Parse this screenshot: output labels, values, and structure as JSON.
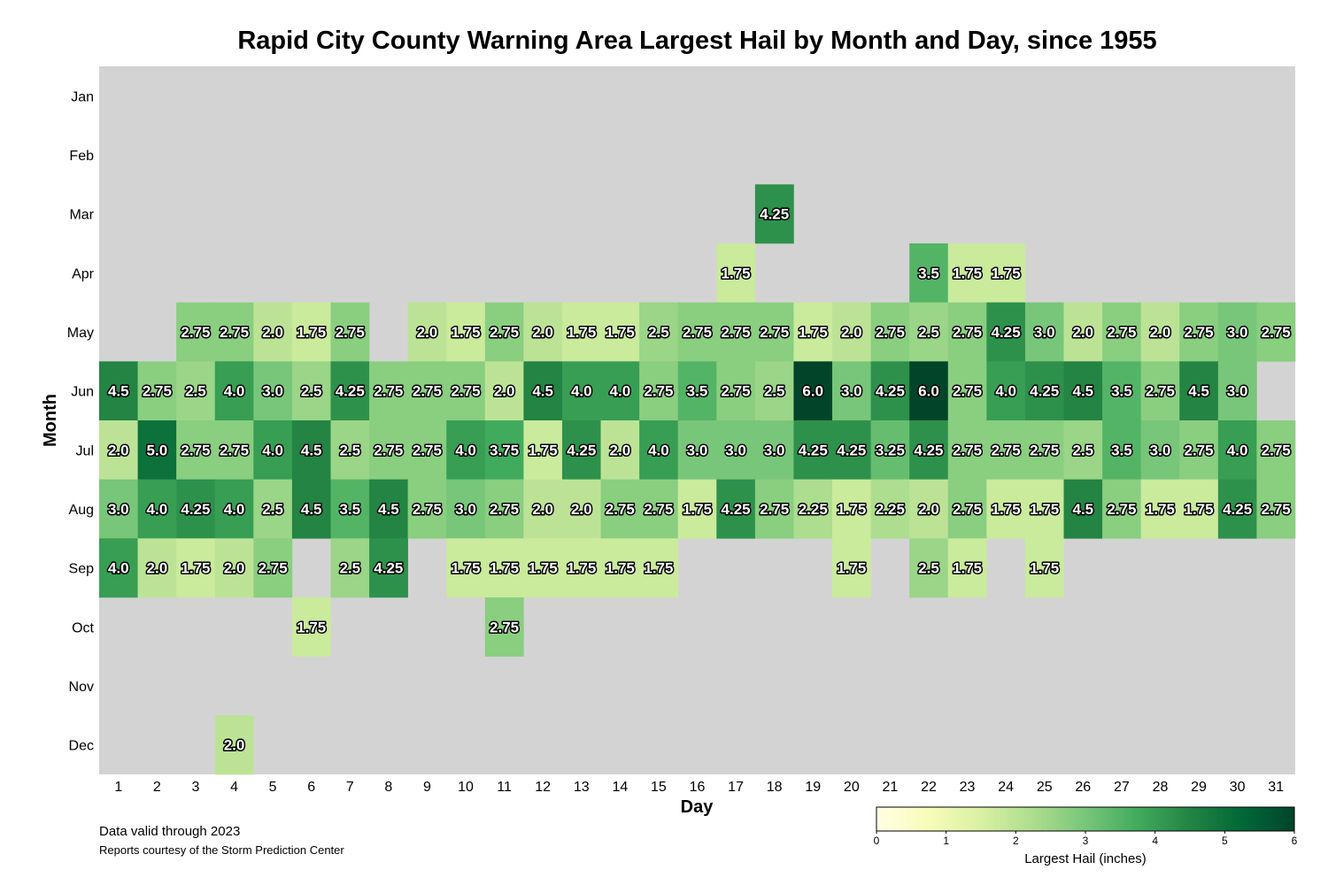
{
  "chart_data": {
    "type": "heatmap",
    "title": "Rapid City County Warning Area Largest Hail by Month and Day, since 1955",
    "xlabel": "Day",
    "ylabel": "Month",
    "x": [
      "1",
      "2",
      "3",
      "4",
      "5",
      "6",
      "7",
      "8",
      "9",
      "10",
      "11",
      "12",
      "13",
      "14",
      "15",
      "16",
      "17",
      "18",
      "19",
      "20",
      "21",
      "22",
      "23",
      "24",
      "25",
      "26",
      "27",
      "28",
      "29",
      "30",
      "31"
    ],
    "y": [
      "Jan",
      "Feb",
      "Mar",
      "Apr",
      "May",
      "Jun",
      "Jul",
      "Aug",
      "Sep",
      "Oct",
      "Nov",
      "Dec"
    ],
    "values": [
      [
        null,
        null,
        null,
        null,
        null,
        null,
        null,
        null,
        null,
        null,
        null,
        null,
        null,
        null,
        null,
        null,
        null,
        null,
        null,
        null,
        null,
        null,
        null,
        null,
        null,
        null,
        null,
        null,
        null,
        null,
        null
      ],
      [
        null,
        null,
        null,
        null,
        null,
        null,
        null,
        null,
        null,
        null,
        null,
        null,
        null,
        null,
        null,
        null,
        null,
        null,
        null,
        null,
        null,
        null,
        null,
        null,
        null,
        null,
        null,
        null,
        null,
        null,
        null
      ],
      [
        null,
        null,
        null,
        null,
        null,
        null,
        null,
        null,
        null,
        null,
        null,
        null,
        null,
        null,
        null,
        null,
        null,
        4.25,
        null,
        null,
        null,
        null,
        null,
        null,
        null,
        null,
        null,
        null,
        null,
        null,
        null
      ],
      [
        null,
        null,
        null,
        null,
        null,
        null,
        null,
        null,
        null,
        null,
        null,
        null,
        null,
        null,
        null,
        null,
        1.75,
        null,
        null,
        null,
        null,
        3.5,
        1.75,
        1.75,
        null,
        null,
        null,
        null,
        null,
        null,
        null
      ],
      [
        null,
        null,
        2.75,
        2.75,
        2.0,
        1.75,
        2.75,
        null,
        2.0,
        1.75,
        2.75,
        2.0,
        1.75,
        1.75,
        2.5,
        2.75,
        2.75,
        2.75,
        1.75,
        2.0,
        2.75,
        2.5,
        2.75,
        4.25,
        3.0,
        2.0,
        2.75,
        2.0,
        2.75,
        3.0,
        2.75
      ],
      [
        4.5,
        2.75,
        2.5,
        4.0,
        3.0,
        2.5,
        4.25,
        2.75,
        2.75,
        2.75,
        2.0,
        4.5,
        4.0,
        4.0,
        2.75,
        3.5,
        2.75,
        2.5,
        6.0,
        3.0,
        4.25,
        6.0,
        2.75,
        4.0,
        4.25,
        4.5,
        3.5,
        2.75,
        4.5,
        3.0,
        null
      ],
      [
        2.0,
        5.0,
        2.75,
        2.75,
        4.0,
        4.5,
        2.5,
        2.75,
        2.75,
        4.0,
        3.75,
        1.75,
        4.25,
        2.0,
        4.0,
        3.0,
        3.0,
        3.0,
        4.25,
        4.25,
        3.25,
        4.25,
        2.75,
        2.75,
        2.75,
        2.5,
        3.5,
        3.0,
        2.75,
        4.0,
        2.75
      ],
      [
        3.0,
        4.0,
        4.25,
        4.0,
        2.5,
        4.5,
        3.5,
        4.5,
        2.75,
        3.0,
        2.75,
        2.0,
        2.0,
        2.75,
        2.75,
        1.75,
        4.25,
        2.75,
        2.25,
        1.75,
        2.25,
        2.0,
        2.75,
        1.75,
        1.75,
        4.5,
        2.75,
        1.75,
        1.75,
        4.25,
        2.75
      ],
      [
        4.0,
        2.0,
        1.75,
        2.0,
        2.75,
        null,
        2.5,
        4.25,
        null,
        1.75,
        1.75,
        1.75,
        1.75,
        1.75,
        1.75,
        null,
        null,
        null,
        null,
        1.75,
        null,
        2.5,
        1.75,
        null,
        1.75,
        null,
        null,
        null,
        null,
        null,
        null
      ],
      [
        null,
        null,
        null,
        null,
        null,
        1.75,
        null,
        null,
        null,
        null,
        2.75,
        null,
        null,
        null,
        null,
        null,
        null,
        null,
        null,
        null,
        null,
        null,
        null,
        null,
        null,
        null,
        null,
        null,
        null,
        null,
        null
      ],
      [
        null,
        null,
        null,
        null,
        null,
        null,
        null,
        null,
        null,
        null,
        null,
        null,
        null,
        null,
        null,
        null,
        null,
        null,
        null,
        null,
        null,
        null,
        null,
        null,
        null,
        null,
        null,
        null,
        null,
        null,
        null
      ],
      [
        null,
        null,
        null,
        2.0,
        null,
        null,
        null,
        null,
        null,
        null,
        null,
        null,
        null,
        null,
        null,
        null,
        null,
        null,
        null,
        null,
        null,
        null,
        null,
        null,
        null,
        null,
        null,
        null,
        null,
        null,
        null
      ]
    ],
    "colorbar": {
      "label": "Largest Hail (inches)",
      "range": [
        0,
        6
      ],
      "ticks": [
        "0",
        "1",
        "2",
        "3",
        "4",
        "5",
        "6"
      ],
      "colormap": "YlGn"
    },
    "missing_color": "#d3d3d3"
  },
  "footnotes": {
    "valid": "Data valid through 2023",
    "source": "Reports courtesy of the Storm Prediction Center"
  }
}
